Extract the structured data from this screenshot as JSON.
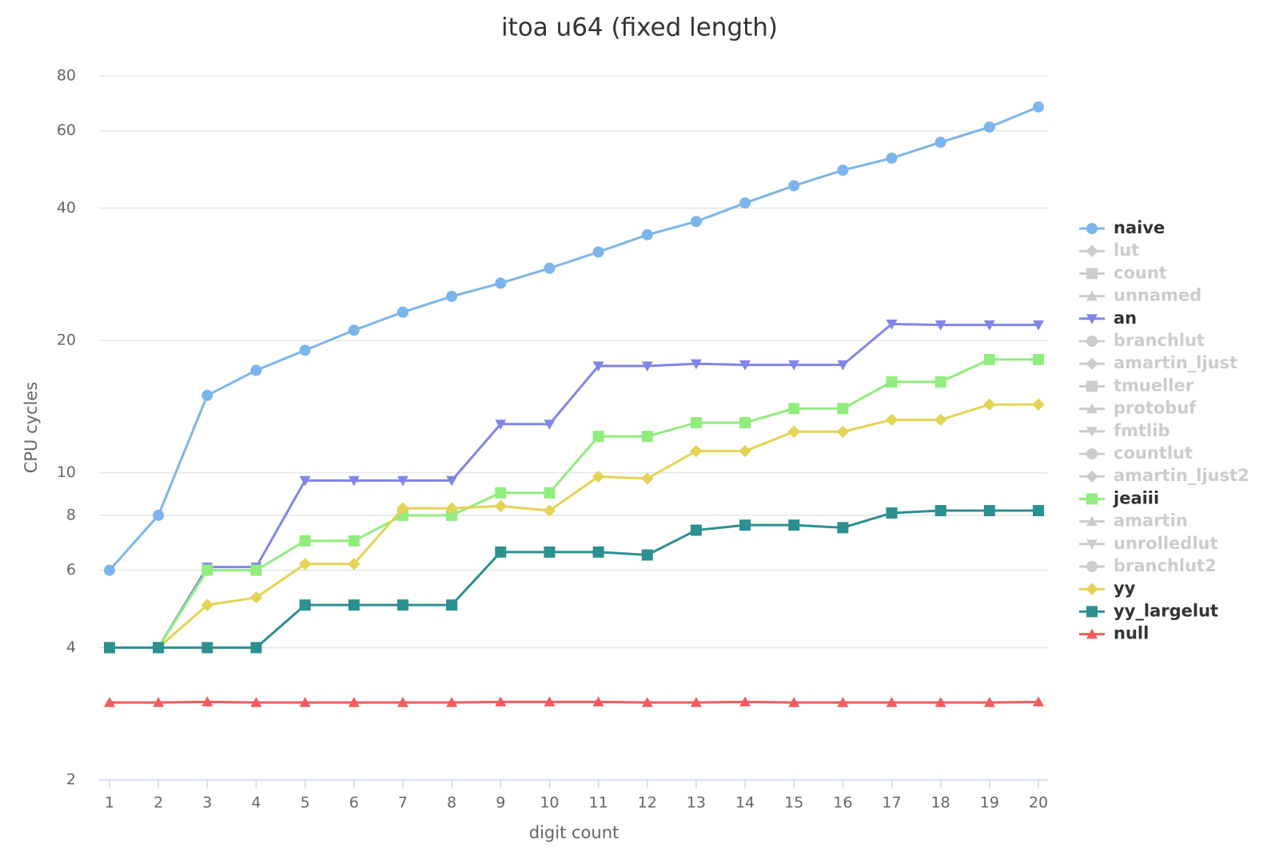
{
  "chart_data": {
    "type": "line",
    "title": "itoa u64 (fixed length)",
    "x_label": "digit count",
    "y_label": "CPU cycles",
    "x": [
      1,
      2,
      3,
      4,
      5,
      6,
      7,
      8,
      9,
      10,
      11,
      12,
      13,
      14,
      15,
      16,
      17,
      18,
      19,
      20
    ],
    "xlim": [
      1,
      20
    ],
    "xticks": [
      1,
      2,
      3,
      4,
      5,
      6,
      7,
      8,
      9,
      10,
      11,
      12,
      13,
      14,
      15,
      16,
      17,
      18,
      19,
      20
    ],
    "ylim": [
      2,
      80
    ],
    "yticks": [
      2,
      4,
      6,
      8,
      10,
      20,
      40,
      60,
      80
    ],
    "log_y": true,
    "grid": true,
    "legend": "right",
    "hidden_color": "#cccccc",
    "series": [
      {
        "name": "naive",
        "color": "#7cb5ec",
        "visible": true,
        "values": [
          6,
          8,
          15,
          17.1,
          19,
          21.1,
          23.2,
          25.2,
          27,
          29.2,
          31.8,
          34.8,
          37.3,
          41.1,
          45,
          48.8,
          52,
          56.5,
          61.2,
          68
        ]
      },
      {
        "name": "lut",
        "visible": false
      },
      {
        "name": "count",
        "visible": false
      },
      {
        "name": "unnamed",
        "visible": false
      },
      {
        "name": "an",
        "color": "#8085e9",
        "visible": true,
        "values": [
          4,
          4,
          6.1,
          6.1,
          9.6,
          9.6,
          9.6,
          9.6,
          12.9,
          12.9,
          17.5,
          17.5,
          17.7,
          17.6,
          17.6,
          17.6,
          21.8,
          21.7,
          21.7,
          21.7
        ]
      },
      {
        "name": "branchlut",
        "visible": false
      },
      {
        "name": "amartin_ljust",
        "visible": false
      },
      {
        "name": "tmueller",
        "visible": false
      },
      {
        "name": "protobuf",
        "visible": false
      },
      {
        "name": "fmtlib",
        "visible": false
      },
      {
        "name": "countlut",
        "visible": false
      },
      {
        "name": "amartin_ljust2",
        "visible": false
      },
      {
        "name": "jeaiii",
        "color": "#90ed7d",
        "visible": true,
        "values": [
          4,
          4,
          6,
          6,
          7,
          7,
          8,
          8,
          9,
          9,
          12.1,
          12.1,
          13,
          13,
          14,
          14,
          16.1,
          16.1,
          18.1,
          18.1
        ]
      },
      {
        "name": "amartin",
        "visible": false
      },
      {
        "name": "unrolledlut",
        "visible": false
      },
      {
        "name": "branchlut2",
        "visible": false
      },
      {
        "name": "yy",
        "color": "#e4d354",
        "visible": true,
        "values": [
          4,
          4,
          5,
          5.2,
          6.2,
          6.2,
          8.3,
          8.3,
          8.4,
          8.2,
          9.8,
          9.7,
          11.2,
          11.2,
          12.4,
          12.4,
          13.2,
          13.2,
          14.3,
          14.3
        ]
      },
      {
        "name": "yy_largelut",
        "color": "#2b908f",
        "visible": true,
        "values": [
          4,
          4,
          4,
          4,
          5,
          5,
          5,
          5,
          6.6,
          6.6,
          6.6,
          6.5,
          7.4,
          7.6,
          7.6,
          7.5,
          8.1,
          8.2,
          8.2,
          8.2
        ]
      },
      {
        "name": "null",
        "color": "#f45b5b",
        "visible": true,
        "values": [
          3,
          3,
          3.01,
          3,
          3,
          3,
          3,
          3,
          3.01,
          3.01,
          3.01,
          3,
          3,
          3.01,
          3,
          3,
          3,
          3,
          3,
          3.01
        ]
      }
    ]
  }
}
